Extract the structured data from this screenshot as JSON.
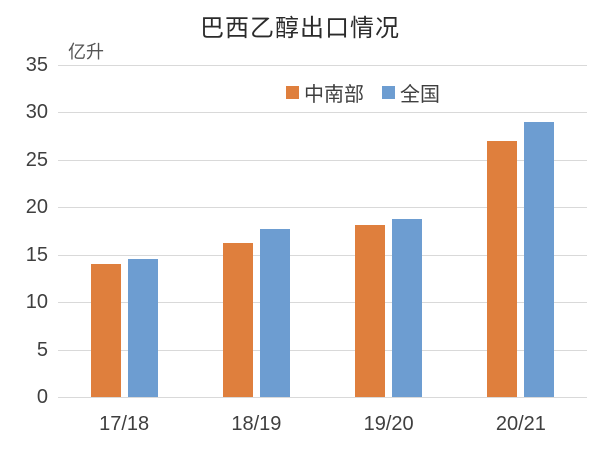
{
  "title": "巴西乙醇出口情况",
  "unit_label": "亿升",
  "legend": {
    "items": [
      {
        "label": "中南部",
        "color": "#df7f3d"
      },
      {
        "label": "全国",
        "color": "#6d9dd1"
      }
    ]
  },
  "chart_data": {
    "type": "bar",
    "title": "巴西乙醇出口情况",
    "ylabel": "亿升",
    "xlabel": "",
    "categories": [
      "17/18",
      "18/19",
      "19/20",
      "20/21"
    ],
    "series": [
      {
        "name": "中南部",
        "color": "#df7f3d",
        "values": [
          14.0,
          16.2,
          18.1,
          27.0
        ]
      },
      {
        "name": "全国",
        "color": "#6d9dd1",
        "values": [
          14.5,
          17.7,
          18.8,
          29.0
        ]
      }
    ],
    "ylim": [
      0,
      35
    ],
    "yticks": [
      0,
      5,
      10,
      15,
      20,
      25,
      30,
      35
    ],
    "grid": true,
    "gridline_color": "#d9d9d9",
    "legend_position": "top-center"
  }
}
